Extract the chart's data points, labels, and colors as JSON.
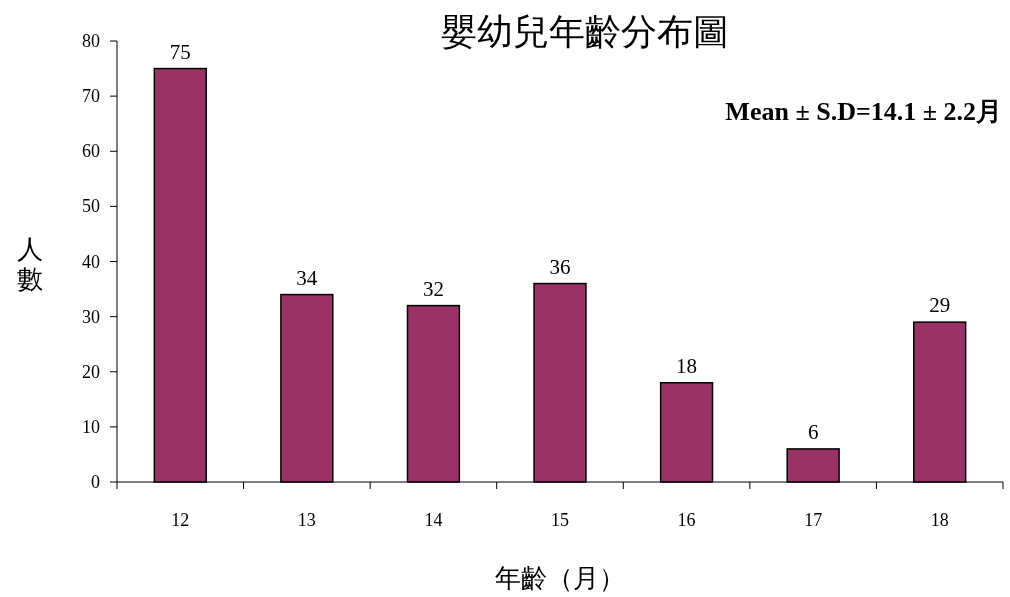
{
  "chart_data": {
    "type": "bar",
    "title": "嬰幼兒年齡分布圖",
    "xlabel": "年齡（月）",
    "ylabel": "人數",
    "categories": [
      "12",
      "13",
      "14",
      "15",
      "16",
      "17",
      "18"
    ],
    "values": [
      75,
      34,
      32,
      36,
      18,
      6,
      29
    ],
    "color": "#993366",
    "ylim": [
      0,
      80
    ],
    "yticks": [
      0,
      10,
      20,
      30,
      40,
      50,
      60,
      70,
      80
    ],
    "data_labels": true,
    "annotations": [
      "Mean ± S.D=14.1 ± 2.2月"
    ]
  }
}
